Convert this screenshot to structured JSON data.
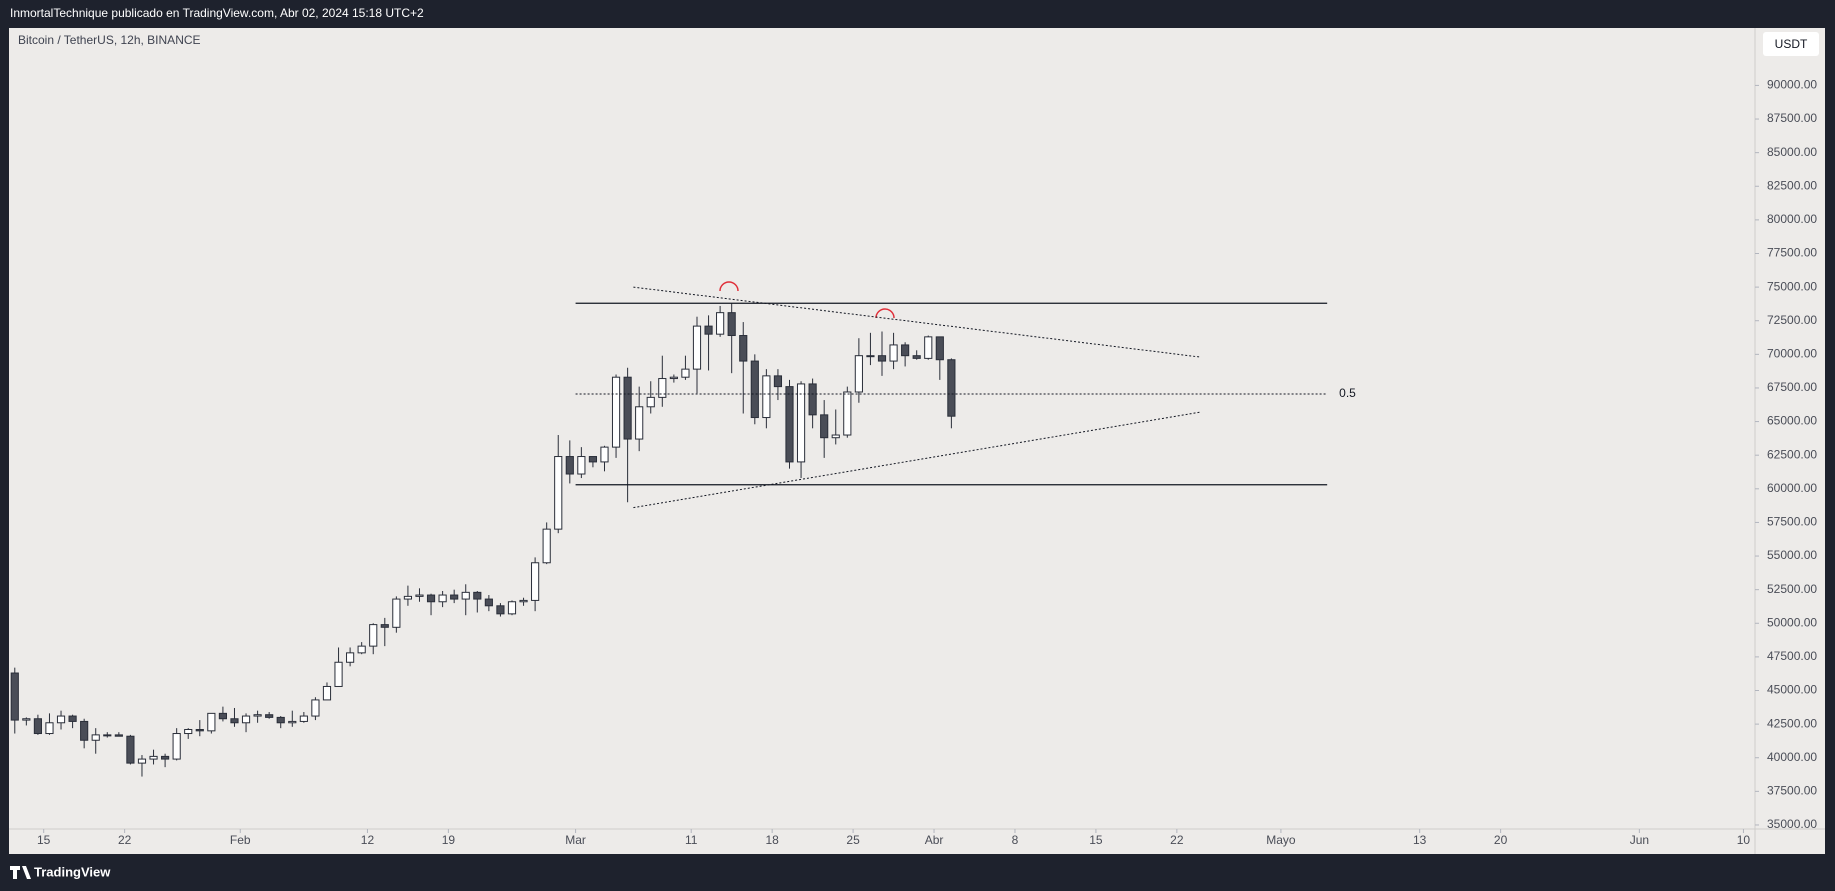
{
  "header": {
    "publisher": "InmortalTechnique publicado en TradingView.com, Abr 02, 2024 15:18 UTC+2",
    "symbol": "Bitcoin / TetherUS, 12h, BINANCE",
    "currency": "USDT",
    "brand": "TradingView"
  },
  "chart_data": {
    "type": "candlestick",
    "up_color": "#ffffff",
    "down_color": "#4a4d57",
    "line_color": "#2a2e39",
    "xlim": [
      "2024-01-12",
      "2024-06-11"
    ],
    "ylim": [
      34700,
      94270
    ],
    "yticks": [
      {
        "value": 35000,
        "label": "35000.00"
      },
      {
        "value": 37500,
        "label": "37500.00"
      },
      {
        "value": 40000,
        "label": "40000.00"
      },
      {
        "value": 42500,
        "label": "42500.00"
      },
      {
        "value": 45000,
        "label": "45000.00"
      },
      {
        "value": 47500,
        "label": "47500.00"
      },
      {
        "value": 50000,
        "label": "50000.00"
      },
      {
        "value": 52500,
        "label": "52500.00"
      },
      {
        "value": 55000,
        "label": "55000.00"
      },
      {
        "value": 57500,
        "label": "57500.00"
      },
      {
        "value": 60000,
        "label": "60000.00"
      },
      {
        "value": 62500,
        "label": "62500.00"
      },
      {
        "value": 65000,
        "label": "65000.00"
      },
      {
        "value": 67500,
        "label": "67500.00"
      },
      {
        "value": 70000,
        "label": "70000.00"
      },
      {
        "value": 72500,
        "label": "72500.00"
      },
      {
        "value": 75000,
        "label": "75000.00"
      },
      {
        "value": 77500,
        "label": "77500.00"
      },
      {
        "value": 80000,
        "label": "80000.00"
      },
      {
        "value": 82500,
        "label": "82500.00"
      },
      {
        "value": 85000,
        "label": "85000.00"
      },
      {
        "value": 87500,
        "label": "87500.00"
      },
      {
        "value": 90000,
        "label": "90000.00"
      }
    ],
    "xticks": [
      {
        "value": "2024-01-15",
        "label": "15"
      },
      {
        "value": "2024-01-22",
        "label": "22"
      },
      {
        "value": "2024-02-01",
        "label": "Feb"
      },
      {
        "value": "2024-02-12",
        "label": "12"
      },
      {
        "value": "2024-02-19",
        "label": "19"
      },
      {
        "value": "2024-03-01",
        "label": "Mar"
      },
      {
        "value": "2024-03-11",
        "label": "11"
      },
      {
        "value": "2024-03-18",
        "label": "18"
      },
      {
        "value": "2024-03-25",
        "label": "25"
      },
      {
        "value": "2024-04-01",
        "label": "Abr"
      },
      {
        "value": "2024-04-08",
        "label": "8"
      },
      {
        "value": "2024-04-15",
        "label": "15"
      },
      {
        "value": "2024-04-22",
        "label": "22"
      },
      {
        "value": "2024-05-01",
        "label": "Mayo"
      },
      {
        "value": "2024-05-13",
        "label": "13"
      },
      {
        "value": "2024-05-20",
        "label": "20"
      },
      {
        "value": "2024-06-01",
        "label": "Jun"
      },
      {
        "value": "2024-06-10",
        "label": "10"
      }
    ],
    "x": [
      "2024-01-12",
      "2024-01-13",
      "2024-01-14",
      "2024-01-15",
      "2024-01-16",
      "2024-01-17",
      "2024-01-18",
      "2024-01-19",
      "2024-01-20",
      "2024-01-21",
      "2024-01-22",
      "2024-01-23",
      "2024-01-24",
      "2024-01-25",
      "2024-01-26",
      "2024-01-27",
      "2024-01-28",
      "2024-01-29",
      "2024-01-30",
      "2024-01-31",
      "2024-02-01",
      "2024-02-02",
      "2024-02-03",
      "2024-02-04",
      "2024-02-05",
      "2024-02-06",
      "2024-02-07",
      "2024-02-08",
      "2024-02-09",
      "2024-02-10",
      "2024-02-11",
      "2024-02-12",
      "2024-02-13",
      "2024-02-14",
      "2024-02-15",
      "2024-02-16",
      "2024-02-17",
      "2024-02-18",
      "2024-02-19",
      "2024-02-20",
      "2024-02-21",
      "2024-02-22",
      "2024-02-23",
      "2024-02-24",
      "2024-02-25",
      "2024-02-26",
      "2024-02-27",
      "2024-02-28",
      "2024-02-29",
      "2024-03-01",
      "2024-03-02",
      "2024-03-03",
      "2024-03-04",
      "2024-03-05",
      "2024-03-06",
      "2024-03-07",
      "2024-03-08",
      "2024-03-09",
      "2024-03-10",
      "2024-03-11",
      "2024-03-12",
      "2024-03-13",
      "2024-03-14",
      "2024-03-15",
      "2024-03-16",
      "2024-03-17",
      "2024-03-18",
      "2024-03-19",
      "2024-03-20",
      "2024-03-21",
      "2024-03-22",
      "2024-03-23",
      "2024-03-24",
      "2024-03-25",
      "2024-03-26",
      "2024-03-27",
      "2024-03-28",
      "2024-03-29",
      "2024-03-30",
      "2024-03-31",
      "2024-04-01",
      "2024-04-02"
    ],
    "ohlc": [
      [
        46300,
        46700,
        41800,
        42800
      ],
      [
        42800,
        43000,
        42400,
        42900
      ],
      [
        42900,
        43200,
        41700,
        41800
      ],
      [
        41800,
        43300,
        41700,
        42600
      ],
      [
        42600,
        43500,
        42100,
        43100
      ],
      [
        43100,
        43200,
        42200,
        42700
      ],
      [
        42700,
        42900,
        40700,
        41300
      ],
      [
        41300,
        42200,
        40300,
        41700
      ],
      [
        41700,
        41900,
        41500,
        41700
      ],
      [
        41700,
        41900,
        41600,
        41600
      ],
      [
        41600,
        41700,
        39500,
        39600
      ],
      [
        39600,
        40200,
        38600,
        39900
      ],
      [
        39900,
        40600,
        39500,
        40100
      ],
      [
        40100,
        40300,
        39300,
        39900
      ],
      [
        39900,
        42200,
        39800,
        41800
      ],
      [
        41800,
        42200,
        41400,
        42100
      ],
      [
        42100,
        42800,
        41600,
        42000
      ],
      [
        42000,
        43300,
        41800,
        43300
      ],
      [
        43300,
        43800,
        42700,
        42900
      ],
      [
        42900,
        43700,
        42300,
        42600
      ],
      [
        42600,
        43300,
        41900,
        43100
      ],
      [
        43100,
        43500,
        42600,
        43200
      ],
      [
        43200,
        43400,
        42900,
        43000
      ],
      [
        43000,
        43100,
        42200,
        42600
      ],
      [
        42600,
        43500,
        42300,
        42700
      ],
      [
        42700,
        43400,
        42600,
        43100
      ],
      [
        43100,
        44500,
        42800,
        44300
      ],
      [
        44300,
        45600,
        44300,
        45300
      ],
      [
        45300,
        48200,
        45300,
        47100
      ],
      [
        47100,
        48200,
        46800,
        47800
      ],
      [
        47800,
        48600,
        47700,
        48300
      ],
      [
        48300,
        50000,
        47700,
        49900
      ],
      [
        49900,
        50400,
        48300,
        49700
      ],
      [
        49700,
        52000,
        49300,
        51800
      ],
      [
        51800,
        52800,
        51300,
        52000
      ],
      [
        52000,
        52600,
        51600,
        52100
      ],
      [
        52100,
        52200,
        50600,
        51600
      ],
      [
        51600,
        52400,
        51200,
        52100
      ],
      [
        52100,
        52500,
        51500,
        51800
      ],
      [
        51800,
        52900,
        50600,
        52300
      ],
      [
        52300,
        52400,
        50800,
        51800
      ],
      [
        51800,
        52100,
        50900,
        51300
      ],
      [
        51300,
        51500,
        50500,
        50700
      ],
      [
        50700,
        51700,
        50600,
        51600
      ],
      [
        51600,
        51900,
        51300,
        51700
      ],
      [
        51700,
        54900,
        50900,
        54500
      ],
      [
        54500,
        57500,
        54400,
        57000
      ],
      [
        57000,
        64000,
        56700,
        62400
      ],
      [
        62400,
        63600,
        60400,
        61100
      ],
      [
        61100,
        63100,
        60800,
        62400
      ],
      [
        62400,
        62400,
        61600,
        62000
      ],
      [
        62000,
        63200,
        61300,
        63100
      ],
      [
        63100,
        68500,
        62300,
        68300
      ],
      [
        68300,
        69000,
        59000,
        63700
      ],
      [
        63700,
        67600,
        62800,
        66100
      ],
      [
        66100,
        68000,
        65600,
        66800
      ],
      [
        66800,
        69900,
        66100,
        68200
      ],
      [
        68200,
        68500,
        67900,
        68300
      ],
      [
        68300,
        69900,
        68100,
        68900
      ],
      [
        68900,
        72800,
        67100,
        72100
      ],
      [
        72100,
        72900,
        68800,
        71500
      ],
      [
        71500,
        73600,
        71300,
        73100
      ],
      [
        73100,
        73800,
        68600,
        71400
      ],
      [
        71400,
        72400,
        65600,
        69500
      ],
      [
        69500,
        70000,
        64800,
        65300
      ],
      [
        65300,
        68900,
        64500,
        68400
      ],
      [
        68400,
        68900,
        66600,
        67600
      ],
      [
        67600,
        68100,
        61500,
        62000
      ],
      [
        62000,
        68000,
        60800,
        67800
      ],
      [
        67800,
        68200,
        64500,
        65500
      ],
      [
        65500,
        66600,
        62300,
        63800
      ],
      [
        63800,
        65900,
        63300,
        64000
      ],
      [
        64000,
        67600,
        63800,
        67200
      ],
      [
        67200,
        71200,
        66400,
        69900
      ],
      [
        69900,
        71600,
        69200,
        69900
      ],
      [
        69900,
        71700,
        68400,
        69500
      ],
      [
        69500,
        71600,
        68900,
        70700
      ],
      [
        70700,
        70900,
        69100,
        69900
      ],
      [
        69900,
        70300,
        69600,
        69700
      ],
      [
        69700,
        71400,
        69600,
        71300
      ],
      [
        71300,
        71300,
        68100,
        69600
      ],
      [
        69600,
        69700,
        64500,
        65400
      ]
    ],
    "levels": [
      {
        "x": [
          "2024-03-01",
          "2024-05-05"
        ],
        "y": [
          73800,
          73800
        ]
      },
      {
        "x": [
          "2024-03-01",
          "2024-05-05"
        ],
        "y": [
          60300,
          60300
        ]
      }
    ],
    "mid_level": {
      "x": [
        "2024-03-01",
        "2024-05-05"
      ],
      "y": [
        67050,
        67050
      ],
      "label": "0.5"
    },
    "trendlines": [
      {
        "x": [
          "2024-03-06",
          "2024-04-24"
        ],
        "y": [
          75000,
          69800
        ]
      },
      {
        "x": [
          "2024-03-06",
          "2024-04-24"
        ],
        "y": [
          58600,
          65700
        ]
      }
    ]
  }
}
